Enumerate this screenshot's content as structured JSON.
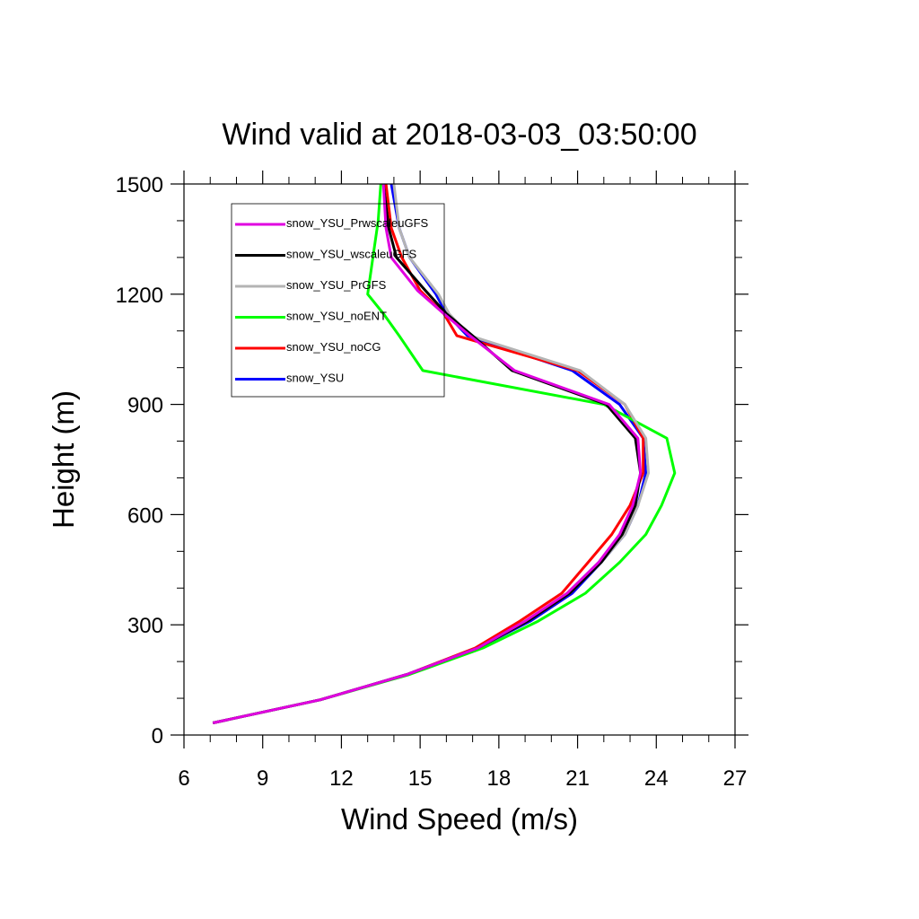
{
  "chart_data": {
    "type": "line",
    "title": "Wind valid at 2018-03-03_03:50:00",
    "xlabel": "Wind Speed (m/s)",
    "ylabel": "Height (m)",
    "xlim": [
      6,
      27
    ],
    "ylim": [
      0,
      1500
    ],
    "xticks": [
      6,
      9,
      12,
      15,
      18,
      21,
      24,
      27
    ],
    "yticks": [
      0,
      300,
      600,
      900,
      1200,
      1500
    ],
    "grid": false,
    "legend_position": "top-left",
    "series": [
      {
        "name": "snow_YSU_PrwscaleuGFS",
        "color": "#e000e0",
        "points": [
          [
            7.1,
            33
          ],
          [
            11.2,
            96
          ],
          [
            14.5,
            165
          ],
          [
            17.2,
            237
          ],
          [
            19.0,
            310
          ],
          [
            20.6,
            386
          ],
          [
            21.8,
            470
          ],
          [
            22.6,
            546
          ],
          [
            23.1,
            625
          ],
          [
            23.4,
            713
          ],
          [
            23.3,
            808
          ],
          [
            22.2,
            900
          ],
          [
            18.6,
            992
          ],
          [
            16.9,
            1087
          ],
          [
            15.9,
            1147
          ],
          [
            14.9,
            1210
          ],
          [
            13.9,
            1300
          ],
          [
            13.7,
            1380
          ],
          [
            13.6,
            1500
          ]
        ]
      },
      {
        "name": "snow_YSU_wscaleuGFS",
        "color": "#000000",
        "points": [
          [
            7.1,
            33
          ],
          [
            11.2,
            96
          ],
          [
            14.5,
            165
          ],
          [
            17.2,
            237
          ],
          [
            19.1,
            310
          ],
          [
            20.7,
            386
          ],
          [
            21.9,
            470
          ],
          [
            22.7,
            546
          ],
          [
            23.2,
            625
          ],
          [
            23.4,
            713
          ],
          [
            23.2,
            808
          ],
          [
            22.1,
            900
          ],
          [
            18.5,
            992
          ],
          [
            17.0,
            1087
          ],
          [
            16.0,
            1147
          ],
          [
            15.2,
            1210
          ],
          [
            14.1,
            1300
          ],
          [
            13.8,
            1380
          ],
          [
            13.6,
            1500
          ]
        ]
      },
      {
        "name": "snow_YSU_PrGFS",
        "color": "#b4b4b4",
        "points": [
          [
            7.1,
            33
          ],
          [
            11.2,
            96
          ],
          [
            14.5,
            165
          ],
          [
            17.2,
            237
          ],
          [
            19.1,
            310
          ],
          [
            20.7,
            386
          ],
          [
            21.9,
            470
          ],
          [
            22.8,
            546
          ],
          [
            23.3,
            625
          ],
          [
            23.7,
            713
          ],
          [
            23.6,
            808
          ],
          [
            22.8,
            900
          ],
          [
            21.1,
            992
          ],
          [
            16.9,
            1087
          ],
          [
            16.1,
            1147
          ],
          [
            15.7,
            1200
          ],
          [
            14.6,
            1300
          ],
          [
            14.2,
            1380
          ],
          [
            14.0,
            1500
          ]
        ]
      },
      {
        "name": "snow_YSU_noENT",
        "color": "#00ff00",
        "points": [
          [
            7.1,
            33
          ],
          [
            11.2,
            96
          ],
          [
            14.6,
            165
          ],
          [
            17.4,
            237
          ],
          [
            19.5,
            310
          ],
          [
            21.3,
            386
          ],
          [
            22.6,
            470
          ],
          [
            23.6,
            546
          ],
          [
            24.2,
            625
          ],
          [
            24.7,
            713
          ],
          [
            24.4,
            808
          ],
          [
            22.0,
            900
          ],
          [
            15.1,
            992
          ],
          [
            14.2,
            1087
          ],
          [
            13.6,
            1147
          ],
          [
            13.0,
            1200
          ],
          [
            13.2,
            1300
          ],
          [
            13.4,
            1400
          ],
          [
            13.5,
            1500
          ]
        ]
      },
      {
        "name": "snow_YSU_noCG",
        "color": "#ff0000",
        "points": [
          [
            7.1,
            33
          ],
          [
            11.2,
            96
          ],
          [
            14.5,
            165
          ],
          [
            17.1,
            237
          ],
          [
            18.8,
            310
          ],
          [
            20.4,
            386
          ],
          [
            21.4,
            470
          ],
          [
            22.3,
            546
          ],
          [
            23.0,
            625
          ],
          [
            23.5,
            713
          ],
          [
            23.5,
            808
          ],
          [
            22.8,
            900
          ],
          [
            21.0,
            992
          ],
          [
            16.4,
            1087
          ],
          [
            15.9,
            1147
          ],
          [
            15.0,
            1210
          ],
          [
            14.3,
            1300
          ],
          [
            13.9,
            1380
          ],
          [
            13.7,
            1500
          ]
        ]
      },
      {
        "name": "snow_YSU",
        "color": "#0000ff",
        "points": [
          [
            7.1,
            33
          ],
          [
            11.2,
            96
          ],
          [
            14.5,
            165
          ],
          [
            17.2,
            237
          ],
          [
            19.2,
            310
          ],
          [
            20.8,
            386
          ],
          [
            21.9,
            470
          ],
          [
            22.8,
            546
          ],
          [
            23.3,
            625
          ],
          [
            23.6,
            713
          ],
          [
            23.5,
            808
          ],
          [
            22.6,
            900
          ],
          [
            20.8,
            992
          ],
          [
            16.8,
            1087
          ],
          [
            16.0,
            1147
          ],
          [
            15.6,
            1200
          ],
          [
            14.6,
            1300
          ],
          [
            14.2,
            1380
          ],
          [
            13.9,
            1500
          ]
        ]
      }
    ]
  }
}
